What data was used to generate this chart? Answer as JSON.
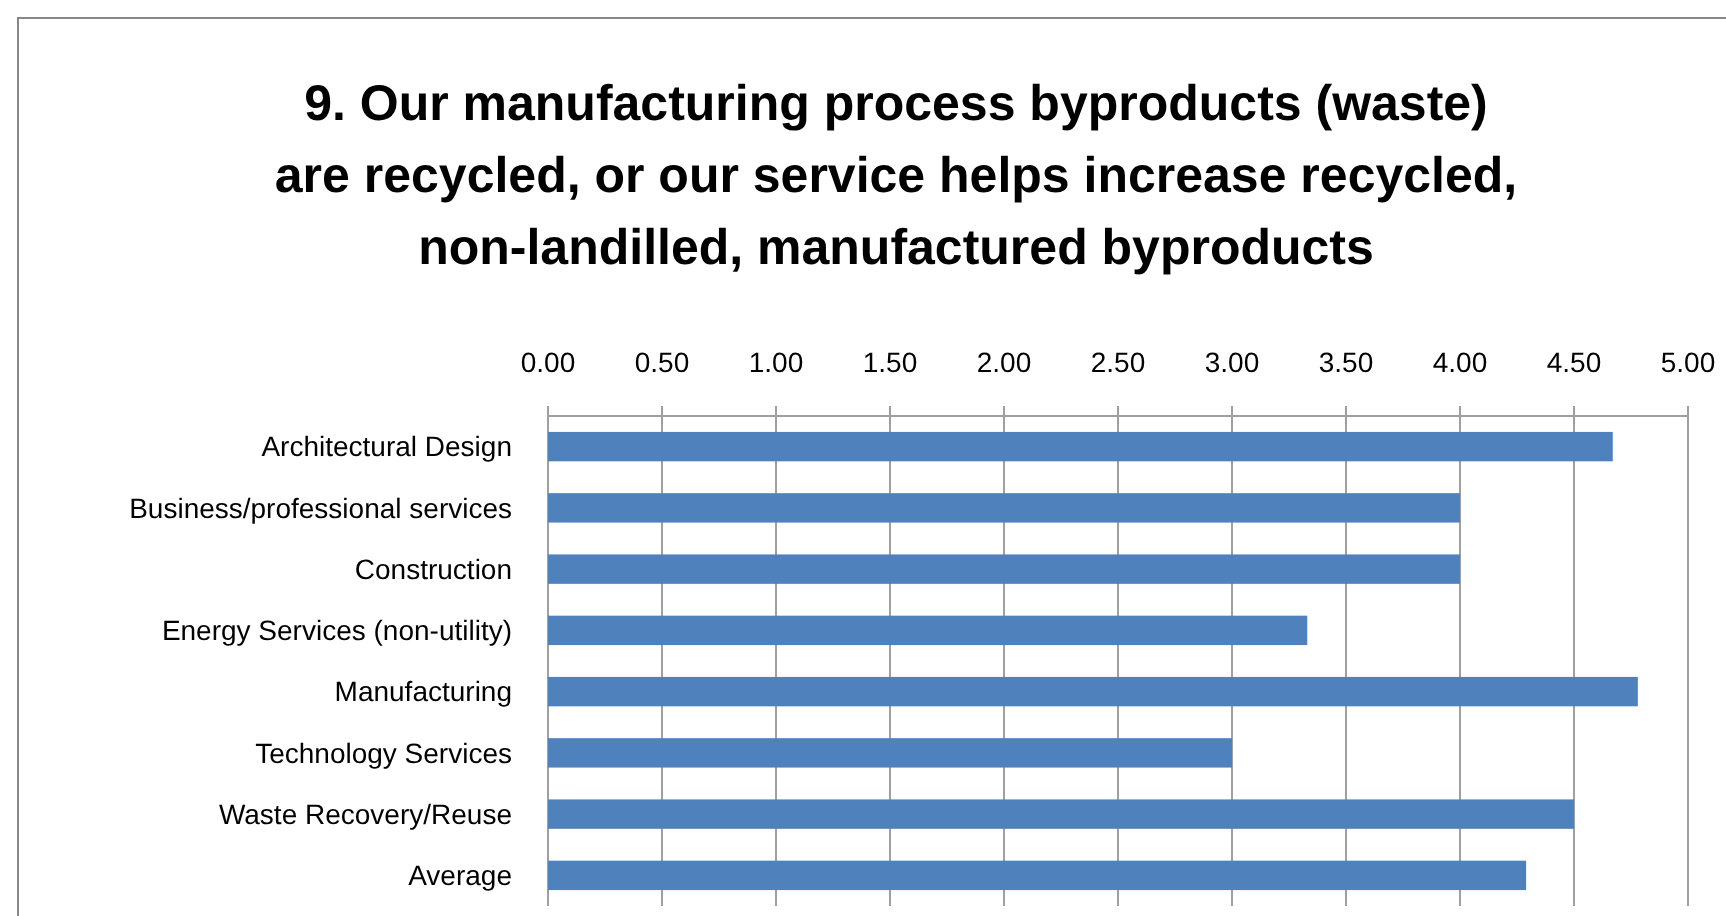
{
  "chart_data": {
    "type": "bar",
    "orientation": "horizontal",
    "title": "9. Our manufacturing process byproducts (waste)\nare recycled, or our service helps increase recycled,\nnon-landilled, manufactured byproducts",
    "categories": [
      "Architectural Design",
      "Business/professional services",
      "Construction",
      "Energy Services (non-utility)",
      "Manufacturing",
      "Technology Services",
      "Waste Recovery/Reuse",
      "Average"
    ],
    "values": [
      4.67,
      4.0,
      4.0,
      3.33,
      4.78,
      3.0,
      4.5,
      4.29
    ],
    "color": "#4f81bd",
    "xlim": [
      0,
      5
    ],
    "xticks": [
      {
        "value": 0,
        "label": "0.00"
      },
      {
        "value": 0.5,
        "label": "0.50"
      },
      {
        "value": 1,
        "label": "1.00"
      },
      {
        "value": 1.5,
        "label": "1.50"
      },
      {
        "value": 2,
        "label": "2.00"
      },
      {
        "value": 2.5,
        "label": "2.50"
      },
      {
        "value": 3,
        "label": "3.00"
      },
      {
        "value": 3.5,
        "label": "3.50"
      },
      {
        "value": 4,
        "label": "4.00"
      },
      {
        "value": 4.5,
        "label": "4.50"
      },
      {
        "value": 5,
        "label": "5.00"
      }
    ],
    "grid": "x"
  }
}
